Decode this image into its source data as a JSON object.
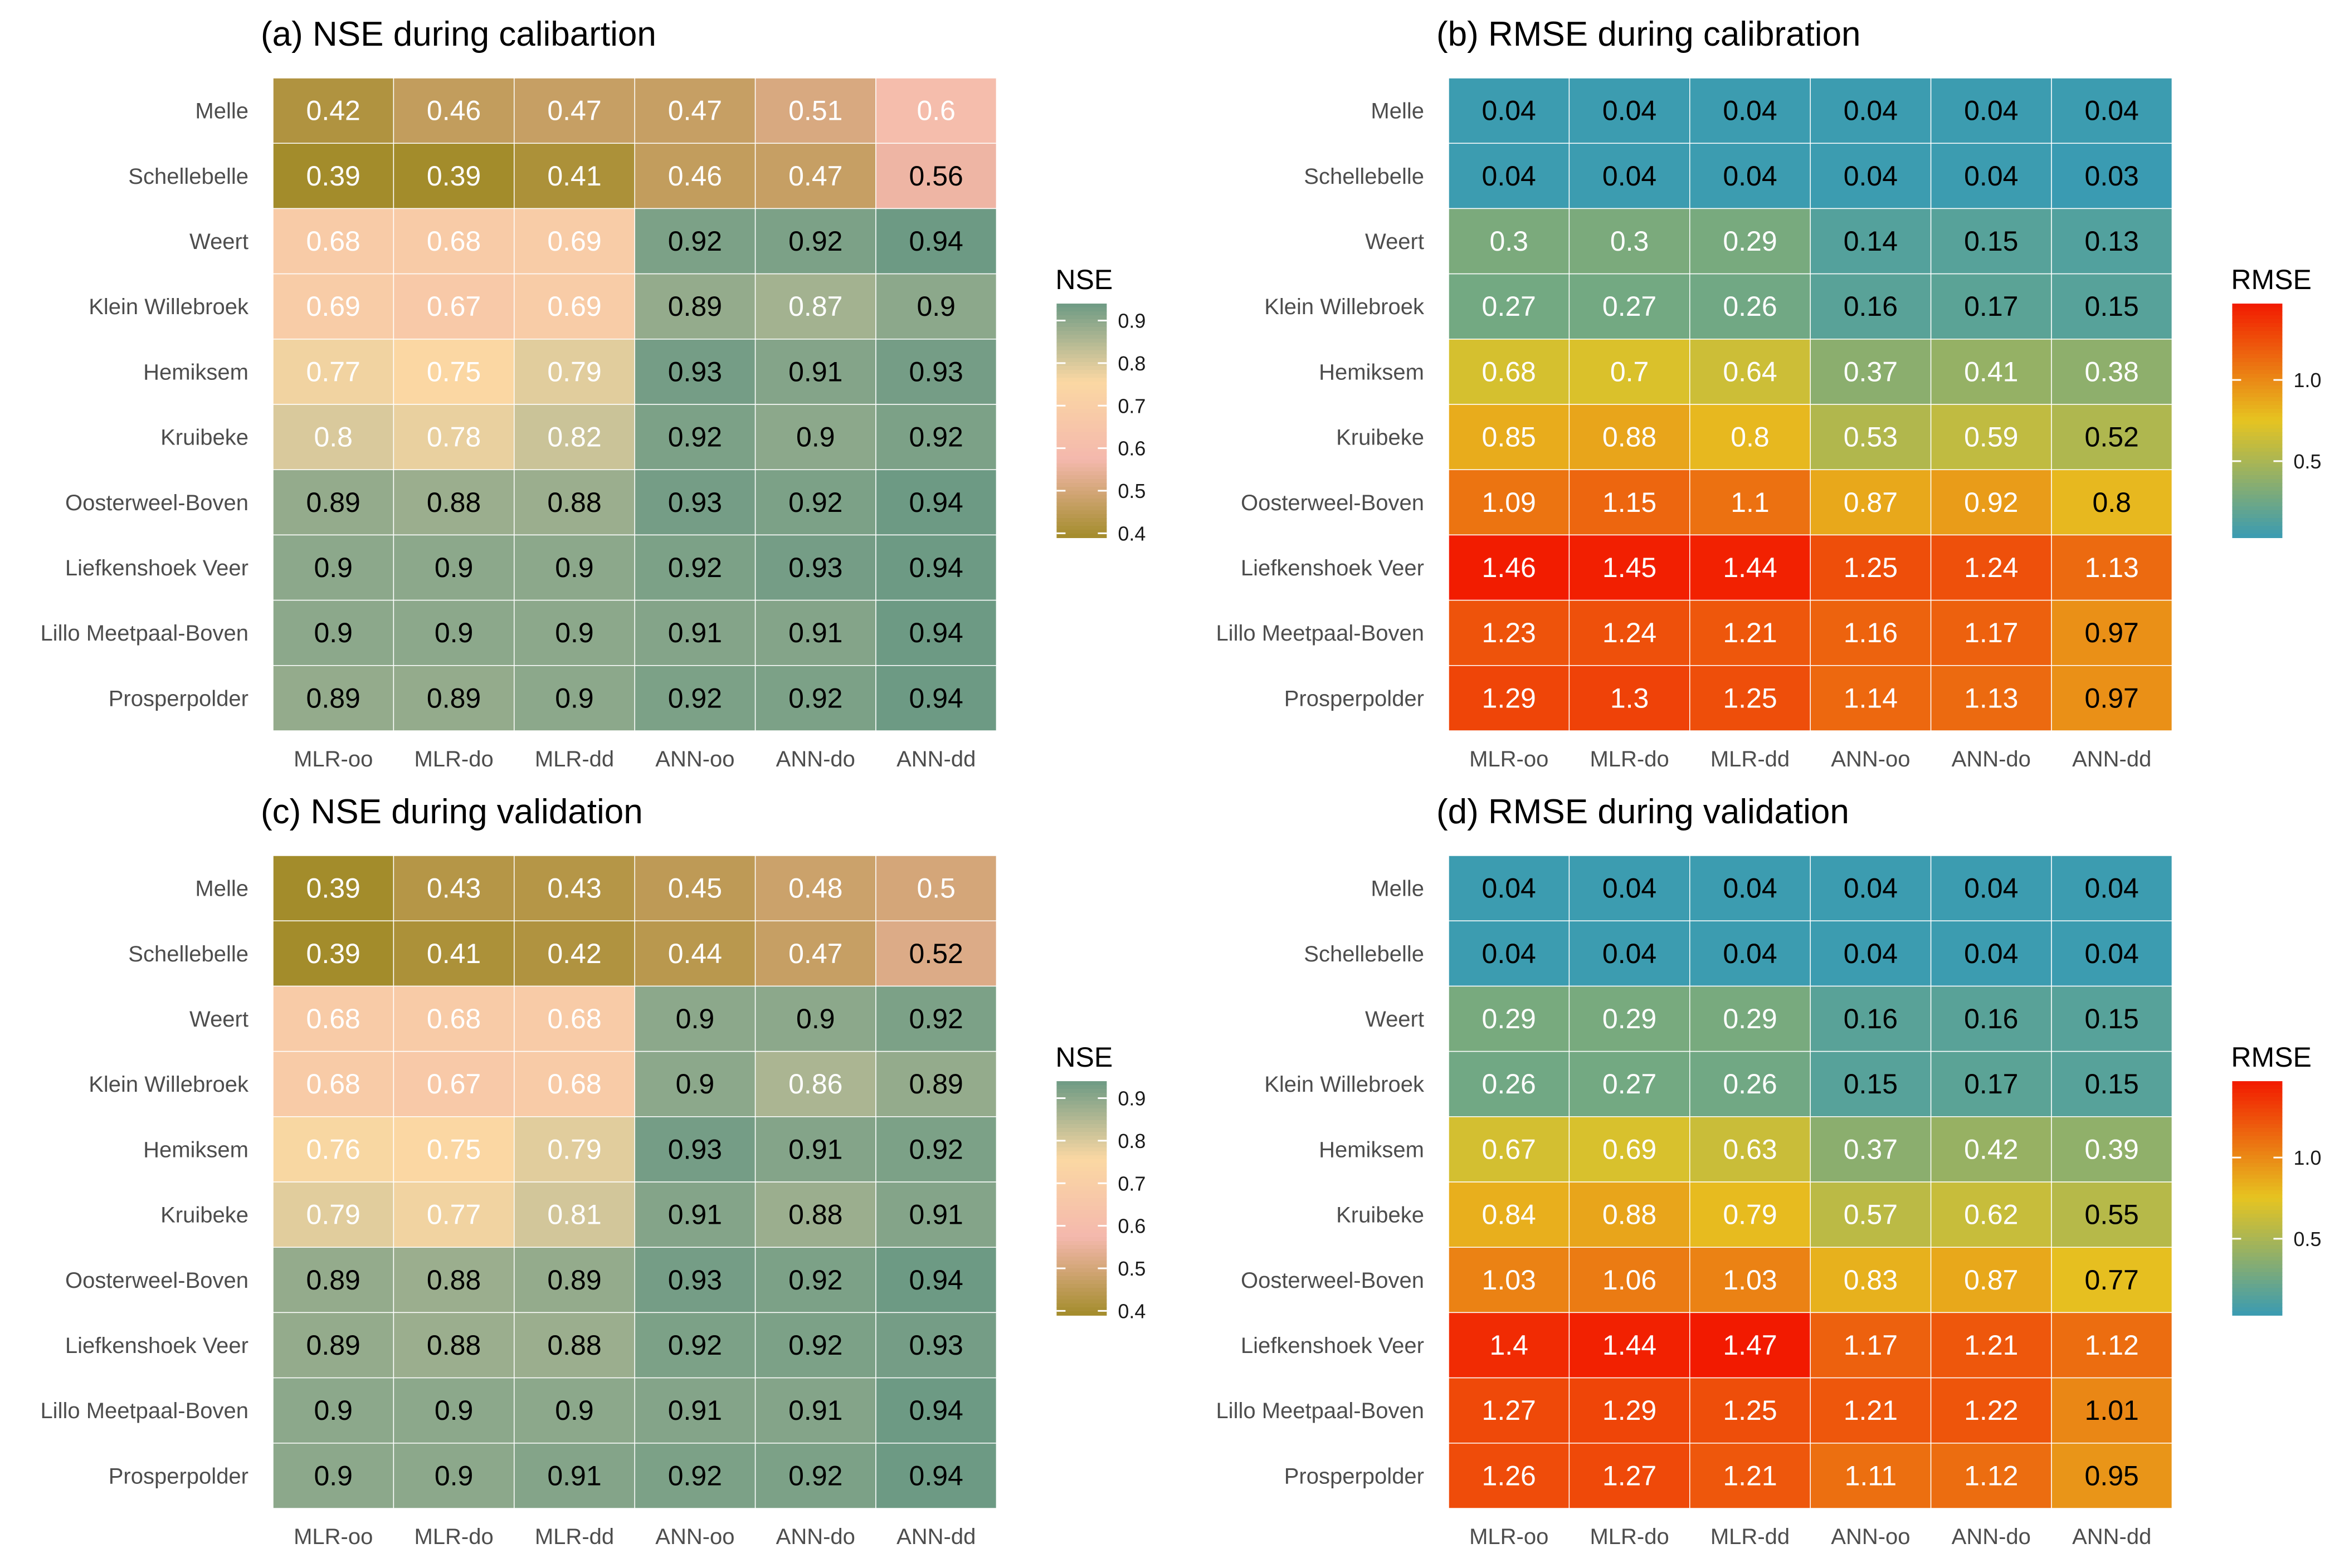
{
  "colors": {
    "nse_scale": [
      "#a38c2b",
      "#f4b8ad",
      "#fbd8a3",
      "#6d9a84"
    ],
    "rmse_scale": [
      "#3a9bb2",
      "#e6c421",
      "#f21a00"
    ],
    "cell_border": "#ffffff",
    "text_light": "#ffffff",
    "text_dark": "#000000"
  },
  "chart_data": [
    {
      "type": "heatmap",
      "title": "(a) NSE during calibartion",
      "legend_title": "NSE",
      "legend_ticks": [
        "0.9",
        "0.8",
        "0.7",
        "0.6",
        "0.5",
        "0.4"
      ],
      "legend_tick_values": [
        0.9,
        0.8,
        0.7,
        0.6,
        0.5,
        0.4
      ],
      "scale": "nse",
      "range": [
        0.39,
        0.94
      ],
      "rows": [
        "Melle",
        "Schellebelle",
        "Weert",
        "Klein Willebroek",
        "Hemiksem",
        "Kruibeke",
        "Oosterweel-Boven",
        "Liefkenshoek Veer",
        "Lillo Meetpaal-Boven",
        "Prosperpolder"
      ],
      "columns": [
        "MLR-oo",
        "MLR-do",
        "MLR-dd",
        "ANN-oo",
        "ANN-do",
        "ANN-dd"
      ],
      "labels": [
        [
          "0.42",
          "0.46",
          "0.47",
          "0.47",
          "0.51",
          "0.6"
        ],
        [
          "0.39",
          "0.39",
          "0.41",
          "0.46",
          "0.47",
          "0.56"
        ],
        [
          "0.68",
          "0.68",
          "0.69",
          "0.92",
          "0.92",
          "0.94"
        ],
        [
          "0.69",
          "0.67",
          "0.69",
          "0.89",
          "0.87",
          "0.9"
        ],
        [
          "0.77",
          "0.75",
          "0.79",
          "0.93",
          "0.91",
          "0.93"
        ],
        [
          "0.8",
          "0.78",
          "0.82",
          "0.92",
          "0.9",
          "0.92"
        ],
        [
          "0.89",
          "0.88",
          "0.88",
          "0.93",
          "0.92",
          "0.94"
        ],
        [
          "0.9",
          "0.9",
          "0.9",
          "0.92",
          "0.93",
          "0.94"
        ],
        [
          "0.9",
          "0.9",
          "0.9",
          "0.91",
          "0.91",
          "0.94"
        ],
        [
          "0.89",
          "0.89",
          "0.9",
          "0.92",
          "0.92",
          "0.94"
        ]
      ]
    },
    {
      "type": "heatmap",
      "title": "(b) RMSE during calibration",
      "legend_title": "RMSE",
      "legend_ticks": [
        "1.0",
        "0.5"
      ],
      "legend_tick_values": [
        1.0,
        0.5
      ],
      "scale": "rmse",
      "range": [
        0.03,
        1.47
      ],
      "rows": [
        "Melle",
        "Schellebelle",
        "Weert",
        "Klein Willebroek",
        "Hemiksem",
        "Kruibeke",
        "Oosterweel-Boven",
        "Liefkenshoek Veer",
        "Lillo Meetpaal-Boven",
        "Prosperpolder"
      ],
      "columns": [
        "MLR-oo",
        "MLR-do",
        "MLR-dd",
        "ANN-oo",
        "ANN-do",
        "ANN-dd"
      ],
      "labels": [
        [
          "0.04",
          "0.04",
          "0.04",
          "0.04",
          "0.04",
          "0.04"
        ],
        [
          "0.04",
          "0.04",
          "0.04",
          "0.04",
          "0.04",
          "0.03"
        ],
        [
          "0.3",
          "0.3",
          "0.29",
          "0.14",
          "0.15",
          "0.13"
        ],
        [
          "0.27",
          "0.27",
          "0.26",
          "0.16",
          "0.17",
          "0.15"
        ],
        [
          "0.68",
          "0.7",
          "0.64",
          "0.37",
          "0.41",
          "0.38"
        ],
        [
          "0.85",
          "0.88",
          "0.8",
          "0.53",
          "0.59",
          "0.52"
        ],
        [
          "1.09",
          "1.15",
          "1.1",
          "0.87",
          "0.92",
          "0.8"
        ],
        [
          "1.46",
          "1.45",
          "1.44",
          "1.25",
          "1.24",
          "1.13"
        ],
        [
          "1.23",
          "1.24",
          "1.21",
          "1.16",
          "1.17",
          "0.97"
        ],
        [
          "1.29",
          "1.3",
          "1.25",
          "1.14",
          "1.13",
          "0.97"
        ]
      ]
    },
    {
      "type": "heatmap",
      "title": "(c) NSE during validation",
      "legend_title": "NSE",
      "legend_ticks": [
        "0.9",
        "0.8",
        "0.7",
        "0.6",
        "0.5",
        "0.4"
      ],
      "legend_tick_values": [
        0.9,
        0.8,
        0.7,
        0.6,
        0.5,
        0.4
      ],
      "scale": "nse",
      "range": [
        0.39,
        0.94
      ],
      "rows": [
        "Melle",
        "Schellebelle",
        "Weert",
        "Klein Willebroek",
        "Hemiksem",
        "Kruibeke",
        "Oosterweel-Boven",
        "Liefkenshoek Veer",
        "Lillo Meetpaal-Boven",
        "Prosperpolder"
      ],
      "columns": [
        "MLR-oo",
        "MLR-do",
        "MLR-dd",
        "ANN-oo",
        "ANN-do",
        "ANN-dd"
      ],
      "labels": [
        [
          "0.39",
          "0.43",
          "0.43",
          "0.45",
          "0.48",
          "0.5"
        ],
        [
          "0.39",
          "0.41",
          "0.42",
          "0.44",
          "0.47",
          "0.52"
        ],
        [
          "0.68",
          "0.68",
          "0.68",
          "0.9",
          "0.9",
          "0.92"
        ],
        [
          "0.68",
          "0.67",
          "0.68",
          "0.9",
          "0.86",
          "0.89"
        ],
        [
          "0.76",
          "0.75",
          "0.79",
          "0.93",
          "0.91",
          "0.92"
        ],
        [
          "0.79",
          "0.77",
          "0.81",
          "0.91",
          "0.88",
          "0.91"
        ],
        [
          "0.89",
          "0.88",
          "0.89",
          "0.93",
          "0.92",
          "0.94"
        ],
        [
          "0.89",
          "0.88",
          "0.88",
          "0.92",
          "0.92",
          "0.93"
        ],
        [
          "0.9",
          "0.9",
          "0.9",
          "0.91",
          "0.91",
          "0.94"
        ],
        [
          "0.9",
          "0.9",
          "0.91",
          "0.92",
          "0.92",
          "0.94"
        ]
      ]
    },
    {
      "type": "heatmap",
      "title": "(d) RMSE during validation",
      "legend_title": "RMSE",
      "legend_ticks": [
        "1.0",
        "0.5"
      ],
      "legend_tick_values": [
        1.0,
        0.5
      ],
      "scale": "rmse",
      "range": [
        0.03,
        1.47
      ],
      "rows": [
        "Melle",
        "Schellebelle",
        "Weert",
        "Klein Willebroek",
        "Hemiksem",
        "Kruibeke",
        "Oosterweel-Boven",
        "Liefkenshoek Veer",
        "Lillo Meetpaal-Boven",
        "Prosperpolder"
      ],
      "columns": [
        "MLR-oo",
        "MLR-do",
        "MLR-dd",
        "ANN-oo",
        "ANN-do",
        "ANN-dd"
      ],
      "labels": [
        [
          "0.04",
          "0.04",
          "0.04",
          "0.04",
          "0.04",
          "0.04"
        ],
        [
          "0.04",
          "0.04",
          "0.04",
          "0.04",
          "0.04",
          "0.04"
        ],
        [
          "0.29",
          "0.29",
          "0.29",
          "0.16",
          "0.16",
          "0.15"
        ],
        [
          "0.26",
          "0.27",
          "0.26",
          "0.15",
          "0.17",
          "0.15"
        ],
        [
          "0.67",
          "0.69",
          "0.63",
          "0.37",
          "0.42",
          "0.39"
        ],
        [
          "0.84",
          "0.88",
          "0.79",
          "0.57",
          "0.62",
          "0.55"
        ],
        [
          "1.03",
          "1.06",
          "1.03",
          "0.83",
          "0.87",
          "0.77"
        ],
        [
          "1.4",
          "1.44",
          "1.47",
          "1.17",
          "1.21",
          "1.12"
        ],
        [
          "1.27",
          "1.29",
          "1.25",
          "1.21",
          "1.22",
          "1.01"
        ],
        [
          "1.26",
          "1.27",
          "1.21",
          "1.11",
          "1.12",
          "0.95"
        ]
      ]
    }
  ]
}
